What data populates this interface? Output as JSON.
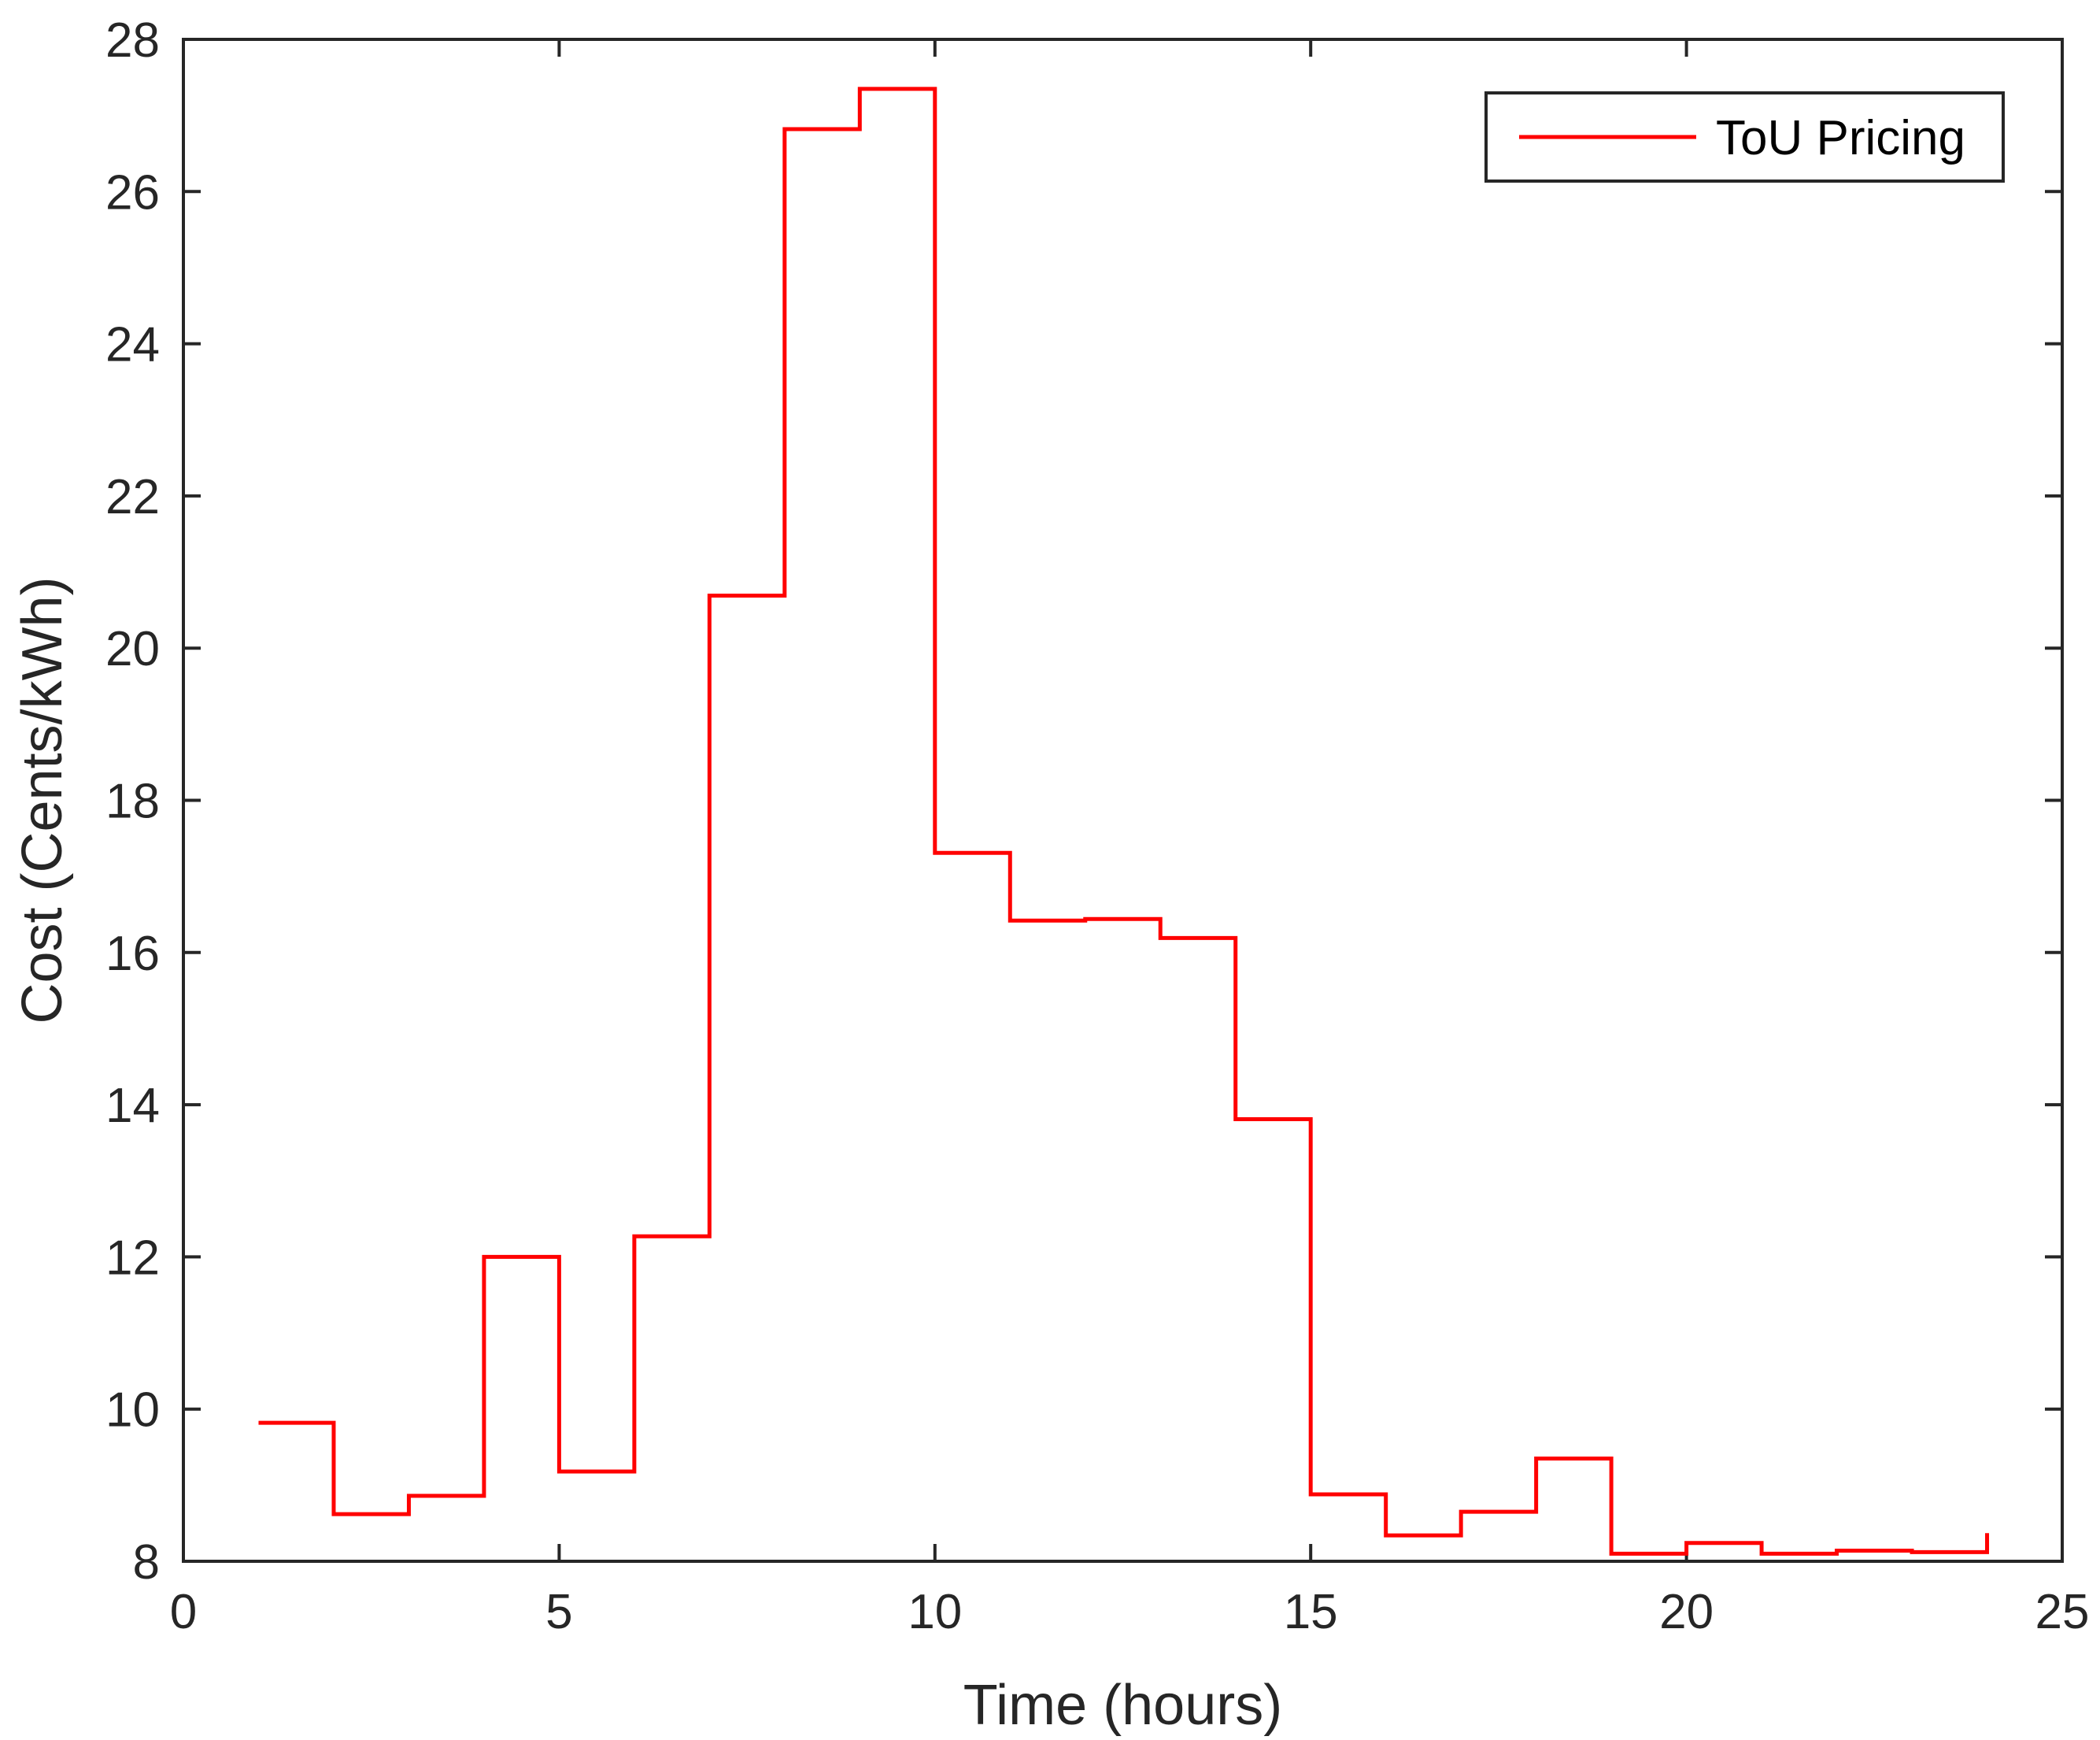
{
  "chart_data": {
    "type": "line",
    "step": "post",
    "xlabel": "Time (hours)",
    "ylabel": "Cost (Cents/kWh)",
    "xlim": [
      0,
      25
    ],
    "ylim": [
      8,
      28
    ],
    "xticks": [
      0,
      5,
      10,
      15,
      20,
      25
    ],
    "yticks": [
      8,
      10,
      12,
      14,
      16,
      18,
      20,
      22,
      24,
      26,
      28
    ],
    "grid": false,
    "legend_position": "top-right",
    "series": [
      {
        "name": "ToU Pricing",
        "color": "#ff0000",
        "x": [
          1,
          2,
          3,
          4,
          5,
          6,
          7,
          8,
          9,
          10,
          11,
          12,
          13,
          14,
          15,
          16,
          17,
          18,
          19,
          20,
          21,
          22,
          23,
          24
        ],
        "y": [
          9.82,
          8.62,
          8.86,
          12.0,
          9.18,
          12.27,
          20.69,
          26.82,
          27.35,
          17.31,
          16.42,
          16.44,
          16.19,
          13.81,
          8.88,
          8.34,
          8.65,
          9.35,
          8.1,
          8.24,
          8.1,
          8.14,
          8.12,
          8.37
        ]
      }
    ]
  }
}
